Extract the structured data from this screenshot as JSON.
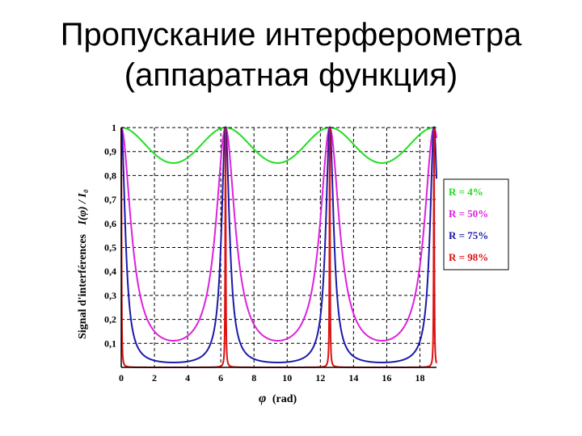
{
  "title": {
    "line1": "Пропускание интерферометра",
    "line2": "(аппаратная функция)"
  },
  "chart_data": {
    "type": "line",
    "xlabel_symbol": "φ",
    "xlabel_unit": "(rad)",
    "ylabel_text": "Signal d'interférences",
    "ylabel_formula": "I(φ) / I₀",
    "xlim": [
      0,
      19
    ],
    "ylim": [
      0,
      1
    ],
    "grid": true,
    "legend_placement": "right, mid-height",
    "x_ticks": [
      "0",
      "2",
      "4",
      "6",
      "8",
      "10",
      "12",
      "14",
      "16",
      "18"
    ],
    "y_ticks": [
      "0,1",
      "0,2",
      "0,3",
      "0,4",
      "0,5",
      "0,6",
      "0,7",
      "0,8",
      "0,9",
      "1"
    ],
    "series": [
      {
        "name": "R = 4%",
        "R": 0.04,
        "color": "#22dd22",
        "max": 1.0,
        "min": 0.852
      },
      {
        "name": "R = 50%",
        "R": 0.5,
        "color": "#dd22dd",
        "max": 1.0,
        "min": 0.111
      },
      {
        "name": "R = 75%",
        "R": 0.75,
        "color": "#1a1aaa",
        "max": 1.0,
        "min": 0.02
      },
      {
        "name": "R = 98%",
        "R": 0.98,
        "color": "#dd1111",
        "max": 1.0,
        "min": 0.0001
      }
    ]
  }
}
